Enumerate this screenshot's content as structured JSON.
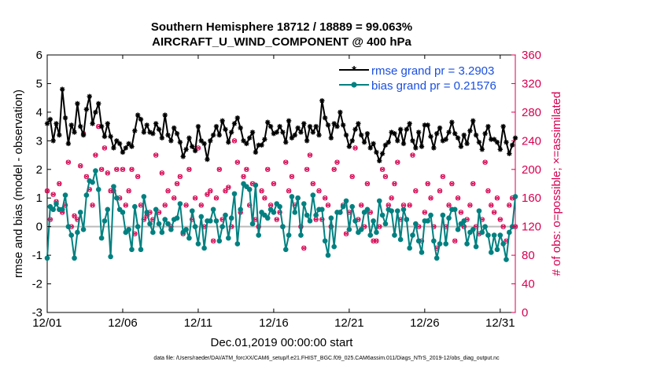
{
  "title": {
    "line1": "Southern Hemisphere 18712 / 18889 = 99.063%",
    "line2": "AIRCRAFT_U_WIND_COMPONENT @ 400 hPa"
  },
  "colors": {
    "rmse": "#000000",
    "bias": "#008080",
    "obs": "#d6004f",
    "zero_line": "#bbbbbb",
    "legend_text": "#1a4fe0"
  },
  "footer": "data file: /Users/raeder/DAI/ATM_forcXX/CAM6_setup/f.e21.FHIST_BGC.f09_025.CAM6assim.011/Diags_NTrS_2019-12/obs_diag_output.nc",
  "chart_data": {
    "type": "line",
    "xlabel": "Dec.01,2019 00:00:00 start",
    "ylabel": "rmse and bias (model - observation)",
    "y2label": "# of obs: o=possible; ×=assimilated",
    "xlim": [
      1,
      32
    ],
    "ylim": [
      -3,
      6
    ],
    "y2lim": [
      0,
      360
    ],
    "x_ticks": [
      1,
      6,
      11,
      16,
      21,
      26,
      31
    ],
    "x_tick_labels": [
      "12/01",
      "12/06",
      "12/11",
      "12/16",
      "12/21",
      "12/26",
      "12/31"
    ],
    "y_ticks": [
      "6",
      "5",
      "4",
      "3",
      "2",
      "1",
      "0",
      "-1",
      "-2",
      "-3"
    ],
    "y2_ticks": [
      "360",
      "320",
      "280",
      "240",
      "200",
      "160",
      "120",
      "80",
      "40",
      "0"
    ],
    "legend": [
      {
        "name": "rmse",
        "label": "rmse grand pr = 3.2903"
      },
      {
        "name": "bias",
        "label": "bias grand pr = 0.21576"
      }
    ],
    "series": [
      {
        "name": "rmse",
        "values": [
          3.6,
          3.75,
          3.0,
          3.6,
          3.2,
          4.8,
          3.8,
          2.9,
          3.55,
          3.3,
          4.3,
          3.5,
          3.2,
          4.1,
          4.55,
          3.6,
          4.0,
          4.3,
          3.5,
          3.15,
          3.6,
          3.15,
          2.75,
          3.0,
          2.9,
          2.6,
          2.75,
          2.9,
          2.8,
          3.35,
          3.9,
          3.75,
          3.3,
          3.55,
          3.3,
          3.25,
          3.6,
          3.4,
          3.1,
          3.9,
          3.2,
          3.0,
          3.45,
          3.25,
          2.95,
          2.45,
          2.7,
          3.1,
          2.8,
          2.65,
          3.5,
          3.0,
          2.9,
          2.35,
          3.0,
          3.2,
          3.5,
          3.2,
          3.7,
          3.4,
          2.95,
          3.3,
          3.6,
          3.8,
          3.45,
          3.0,
          2.9,
          3.1,
          3.3,
          2.6,
          2.85,
          2.85,
          3.05,
          3.65,
          3.5,
          3.25,
          3.3,
          3.5,
          3.3,
          2.95,
          3.7,
          3.1,
          3.2,
          3.45,
          3.3,
          3.6,
          3.0,
          3.5,
          3.3,
          3.5,
          3.2,
          4.4,
          3.8,
          3.55,
          3.1,
          3.6,
          3.5,
          4.0,
          3.55,
          3.2,
          2.8,
          3.0,
          3.4,
          3.6,
          3.2,
          2.95,
          3.25,
          2.75,
          2.9,
          2.6,
          2.3,
          2.55,
          2.85,
          2.95,
          3.3,
          3.25,
          3.0,
          3.4,
          2.9,
          3.4,
          3.6,
          3.0,
          2.75,
          3.3,
          2.8,
          3.55,
          3.55,
          3.15,
          2.75,
          3.25,
          3.45,
          3.0,
          3.05,
          3.3,
          3.65,
          3.25,
          3.1,
          2.8,
          3.2,
          2.9,
          3.35,
          3.7,
          3.2,
          2.95,
          2.7,
          3.25,
          3.5,
          3.05,
          3.05,
          2.95,
          2.7,
          3.5,
          2.95,
          2.55,
          2.85,
          3.1
        ]
      },
      {
        "name": "bias",
        "values": [
          -1.1,
          0.7,
          0.6,
          0.8,
          0.6,
          0.6,
          1.1,
          0.0,
          -0.3,
          -1.1,
          -0.2,
          0.5,
          -0.1,
          1.1,
          1.6,
          1.55,
          1.95,
          1.3,
          -0.4,
          0.2,
          0.6,
          -1.05,
          1.4,
          1.0,
          0.6,
          0.5,
          -0.2,
          -0.1,
          -0.8,
          0.7,
          0.0,
          -0.8,
          1.05,
          0.5,
          0.1,
          -0.2,
          0.6,
          0.1,
          -0.2,
          0.25,
          0.1,
          -0.1,
          0.25,
          0.3,
          0.8,
          -0.2,
          -0.1,
          -0.4,
          0.55,
          0.0,
          -0.6,
          0.35,
          -0.75,
          0.2,
          0.2,
          0.6,
          0.2,
          -0.5,
          0.0,
          0.4,
          -0.4,
          0.3,
          1.15,
          -0.6,
          0.6,
          1.5,
          1.4,
          1.3,
          0.1,
          1.45,
          -0.3,
          0.5,
          0.4,
          0.3,
          0.6,
          0.5,
          0.8,
          0.7,
          0.0,
          -0.8,
          -0.3,
          1.05,
          0.5,
          1.0,
          -0.3,
          0.8,
          0.4,
          0.2,
          1.1,
          0.4,
          0.6,
          0.6,
          -0.5,
          -1.0,
          0.3,
          -0.7,
          0.5,
          0.5,
          0.7,
          0.9,
          -0.1,
          0.7,
          0.2,
          -0.2,
          -0.1,
          0.5,
          0.6,
          -0.3,
          0.2,
          -0.2,
          0.9,
          0.4,
          0.1,
          0.6,
          0.55,
          -0.3,
          0.55,
          -0.45,
          0.6,
          0.25,
          -0.75,
          -0.3,
          0.1,
          -0.5,
          -0.9,
          0.2,
          0.2,
          0.4,
          -0.5,
          -1.1,
          -0.6,
          0.4,
          -0.6,
          0.3,
          0.6,
          0.6,
          -0.1,
          0.1,
          0.2,
          -0.6,
          -0.2,
          -0.1,
          -0.7,
          0.55,
          -0.2,
          0.0,
          -0.3,
          -0.9,
          -0.3,
          -0.8,
          -0.3,
          -0.6,
          -1.15,
          -0.2,
          0.0,
          1.05
        ]
      }
    ],
    "obs_possible": [
      170,
      130,
      165,
      155,
      180,
      140,
      150,
      210,
      120,
      135,
      130,
      205,
      250,
      190,
      172,
      150,
      220,
      260,
      200,
      230,
      195,
      170,
      170,
      200,
      160,
      200,
      150,
      170,
      200,
      110,
      190,
      150,
      130,
      135,
      140,
      130,
      220,
      140,
      195,
      150,
      170,
      120,
      160,
      180,
      190,
      110,
      150,
      200,
      130,
      160,
      230,
      150,
      120,
      165,
      170,
      100,
      160,
      200,
      130,
      170,
      175,
      120,
      240,
      210,
      140,
      190,
      200,
      150,
      180,
      130,
      120,
      170,
      160,
      200,
      150,
      180,
      130,
      140,
      120,
      210,
      170,
      190,
      150,
      160,
      120,
      90,
      200,
      220,
      180,
      130,
      170,
      130,
      160,
      150,
      120,
      200,
      210,
      140,
      150,
      110,
      140,
      190,
      230,
      130,
      150,
      120,
      180,
      140,
      100,
      100,
      120,
      200,
      190,
      150,
      160,
      180,
      210,
      130,
      150,
      130,
      150,
      220,
      170,
      120,
      100,
      140,
      180,
      160,
      120,
      90,
      170,
      190,
      120,
      150,
      180,
      100,
      160,
      140,
      120,
      130,
      150,
      180,
      120,
      110,
      130,
      210,
      170,
      150,
      140,
      160,
      130,
      120,
      100,
      150,
      160,
      120
    ]
  }
}
